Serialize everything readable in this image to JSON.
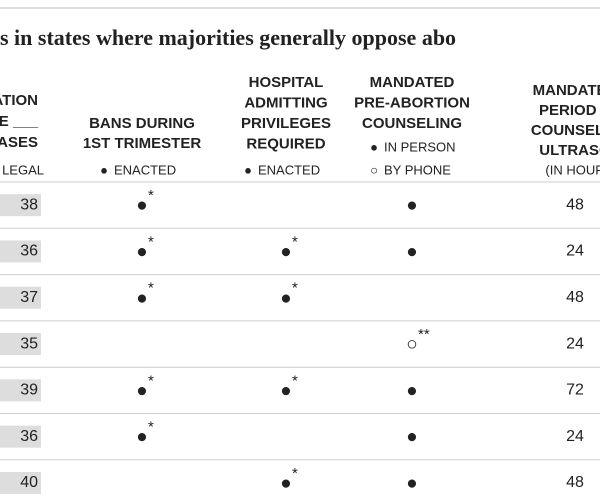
{
  "title": "s in states where majorities generally oppose abo",
  "columns": [
    {
      "header": [
        "ATION",
        "E ___",
        "ASES"
      ],
      "legend": [
        {
          "label": "LEGAL"
        }
      ]
    },
    {
      "header": [
        "BANS DURING",
        "1ST TRIMESTER"
      ],
      "legend": [
        {
          "symbol": "●",
          "label": "ENACTED"
        }
      ]
    },
    {
      "header": [
        "HOSPITAL",
        "ADMITTING",
        "PRIVILEGES",
        "REQUIRED"
      ],
      "legend": [
        {
          "symbol": "●",
          "label": "ENACTED"
        }
      ]
    },
    {
      "header": [
        "MANDATED",
        "PRE-ABORTION",
        "COUNSELING"
      ],
      "legend": [
        {
          "symbol": "●",
          "label": "IN PERSON"
        },
        {
          "symbol": "○",
          "label": "BY PHONE"
        }
      ]
    },
    {
      "header": [
        "MANDATED",
        "PERIOD A",
        "COUNSELIN",
        "ULTRASO"
      ],
      "legend": [
        {
          "label": "(IN HOUR"
        }
      ]
    }
  ],
  "rows": [
    {
      "share": "38",
      "ban": "●",
      "ban_note": "*",
      "counseling": "●",
      "period": "48"
    },
    {
      "share": "36",
      "ban": "●",
      "ban_note": "*",
      "hospital": "●",
      "hospital_note": "*",
      "counseling": "●",
      "period": "24"
    },
    {
      "share": "37",
      "ban": "●",
      "ban_note": "*",
      "hospital": "●",
      "hospital_note": "*",
      "period": "48"
    },
    {
      "share": "35",
      "counseling": "○",
      "counseling_note": "**",
      "period": "24"
    },
    {
      "share": "39",
      "ban": "●",
      "ban_note": "*",
      "hospital": "●",
      "hospital_note": "*",
      "counseling": "●",
      "period": "72"
    },
    {
      "share": "36",
      "ban": "●",
      "ban_note": "*",
      "counseling": "●",
      "period": "24"
    },
    {
      "share": "40",
      "hospital": "●",
      "hospital_note": "*",
      "counseling": "●",
      "period": "48"
    }
  ]
}
